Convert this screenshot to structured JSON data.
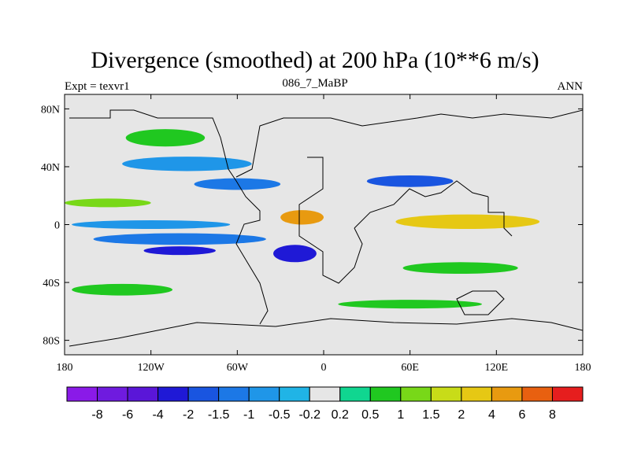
{
  "title": "Divergence (smoothed) at 200 hPa (10**6 m/s)",
  "subtitle_left": "Expt = texvr1",
  "subtitle_center": "086_7_MaBP",
  "subtitle_right": "ANN",
  "chart_data": {
    "type": "heatmap",
    "title": "Divergence (smoothed) at 200 hPa (10**6 m/s)",
    "variable": "Divergence (smoothed)",
    "level": "200 hPa",
    "units": "10**6 m/s",
    "x_axis": {
      "range": [
        -180,
        180
      ],
      "ticks": [
        -180,
        -120,
        -60,
        0,
        60,
        120,
        180
      ],
      "tick_labels": [
        "180",
        "120W",
        "60W",
        "0",
        "60E",
        "120E",
        "180"
      ]
    },
    "y_axis": {
      "range": [
        -90,
        90
      ],
      "ticks": [
        80,
        40,
        0,
        -40,
        -80
      ],
      "tick_labels": [
        "80N",
        "40N",
        "0",
        "40S",
        "80S"
      ]
    },
    "colorbar": {
      "levels": [
        -8,
        -6,
        -4,
        -2,
        -1.5,
        -1,
        -0.5,
        -0.2,
        0.2,
        0.5,
        1,
        1.5,
        2,
        4,
        6,
        8
      ],
      "labels": [
        "-8",
        "-6",
        "-4",
        "-2",
        "-1.5",
        "-1",
        "-0.5",
        "-0.2",
        "0.2",
        "0.5",
        "1",
        "1.5",
        "2",
        "4",
        "6",
        "8"
      ],
      "colors": [
        "#8a1ae8",
        "#6f1bdf",
        "#5a16d8",
        "#1f19d6",
        "#1955e0",
        "#1c78e6",
        "#1f96e8",
        "#20b4e6",
        "#e6e6e6",
        "#10d690",
        "#20c820",
        "#78d818",
        "#c8dc18",
        "#e6c814",
        "#e89a10",
        "#e86010",
        "#e61e1e"
      ]
    },
    "bands": [
      {
        "lat": 60,
        "lon": -110,
        "width_lon": 55,
        "width_lat": 12,
        "level": 0.5
      },
      {
        "lat": 42,
        "lon": -95,
        "width_lon": 90,
        "width_lat": 10,
        "level": -1
      },
      {
        "lat": 28,
        "lon": -60,
        "width_lon": 60,
        "width_lat": 8,
        "level": -1.5
      },
      {
        "lat": 15,
        "lon": -150,
        "width_lon": 60,
        "width_lat": 6,
        "level": 1
      },
      {
        "lat": 5,
        "lon": -15,
        "width_lon": 30,
        "width_lat": 10,
        "level": 4
      },
      {
        "lat": 2,
        "lon": 100,
        "width_lon": 100,
        "width_lat": 10,
        "level": 2
      },
      {
        "lat": 0,
        "lon": -120,
        "width_lon": 110,
        "width_lat": 6,
        "level": -1
      },
      {
        "lat": 30,
        "lon": 60,
        "width_lon": 60,
        "width_lat": 8,
        "level": -2
      },
      {
        "lat": -10,
        "lon": -100,
        "width_lon": 120,
        "width_lat": 8,
        "level": -1.5
      },
      {
        "lat": -18,
        "lon": -100,
        "width_lon": 50,
        "width_lat": 6,
        "level": -4
      },
      {
        "lat": -20,
        "lon": -20,
        "width_lon": 30,
        "width_lat": 12,
        "level": -4
      },
      {
        "lat": -30,
        "lon": 95,
        "width_lon": 80,
        "width_lat": 8,
        "level": 0.5
      },
      {
        "lat": -45,
        "lon": -140,
        "width_lon": 70,
        "width_lat": 8,
        "level": 0.5
      },
      {
        "lat": -55,
        "lon": 60,
        "width_lon": 100,
        "width_lat": 6,
        "level": 0.5
      }
    ]
  }
}
